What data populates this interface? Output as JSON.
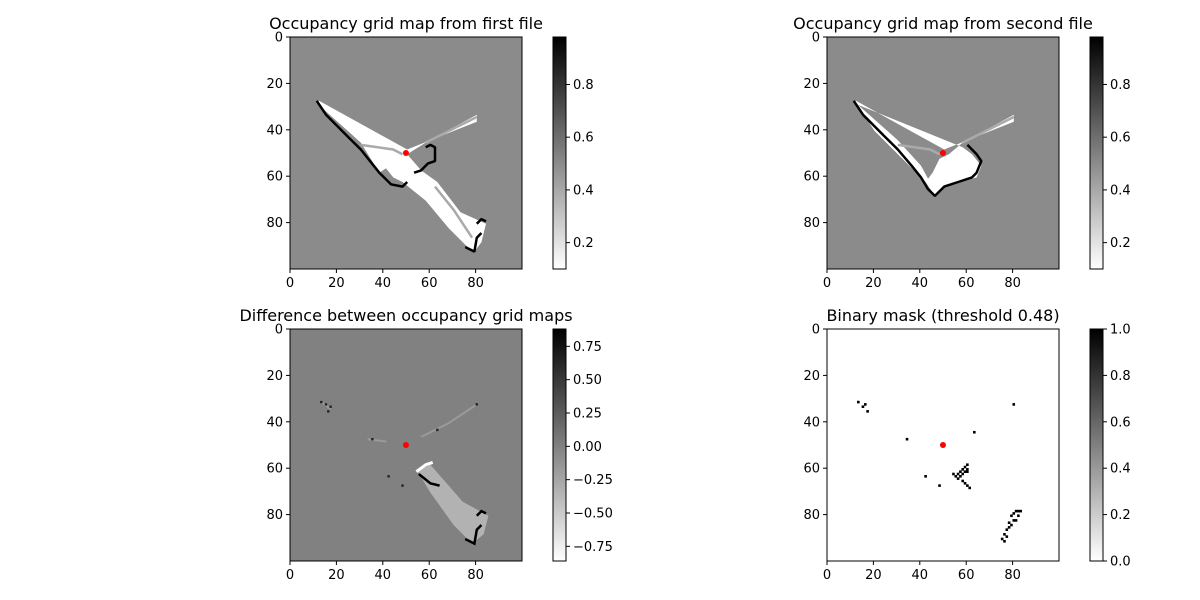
{
  "chart_data": [
    {
      "type": "heatmap",
      "title": "Occupancy grid map from first file",
      "xlim": [
        0,
        99
      ],
      "ylim": [
        99,
        0
      ],
      "xticks": [
        "0",
        "20",
        "40",
        "60",
        "80"
      ],
      "yticks": [
        "0",
        "20",
        "40",
        "60",
        "80"
      ],
      "colormap": "gray_r",
      "background_value": 0.5,
      "colorbar": {
        "range": [
          0.1,
          0.98
        ],
        "ticks": [
          "0.2",
          "0.4",
          "0.6",
          "0.8"
        ]
      },
      "robot_position": {
        "x": 50,
        "y": 50,
        "color": "#ff0000"
      },
      "free_polygons": [
        [
          [
            11,
            28
          ],
          [
            12,
            27
          ],
          [
            50,
            48
          ],
          [
            80,
            36
          ],
          [
            80,
            33
          ],
          [
            58,
            45
          ],
          [
            50,
            50
          ],
          [
            38,
            58
          ],
          [
            30,
            45
          ]
        ],
        [
          [
            36,
            52
          ],
          [
            50,
            50
          ],
          [
            56,
            57
          ],
          [
            63,
            62
          ],
          [
            73,
            75
          ],
          [
            84,
            80
          ],
          [
            82,
            88
          ],
          [
            79,
            92
          ],
          [
            76,
            90
          ],
          [
            68,
            82
          ],
          [
            58,
            70
          ],
          [
            48,
            62
          ],
          [
            44,
            60
          ],
          [
            40,
            55
          ]
        ]
      ],
      "occupied_lines": [
        [
          [
            11,
            27
          ],
          [
            15,
            33
          ],
          [
            24,
            42
          ],
          [
            30,
            48
          ],
          [
            38,
            58
          ],
          [
            43,
            63
          ],
          [
            48,
            64
          ],
          [
            50,
            62
          ]
        ],
        [
          [
            75,
            90
          ],
          [
            79,
            92
          ],
          [
            80,
            86
          ],
          [
            82,
            84
          ]
        ],
        [
          [
            80,
            80
          ],
          [
            82,
            78
          ],
          [
            84,
            79
          ]
        ],
        [
          [
            53,
            58
          ],
          [
            56,
            57
          ],
          [
            59,
            54
          ],
          [
            62,
            53
          ],
          [
            62,
            47
          ],
          [
            60,
            46
          ],
          [
            58,
            47
          ]
        ]
      ],
      "gray_lines": [
        [
          [
            30,
            46
          ],
          [
            44,
            48
          ],
          [
            48,
            50
          ]
        ],
        [
          [
            58,
            45
          ],
          [
            72,
            38
          ],
          [
            80,
            34
          ]
        ],
        [
          [
            62,
            64
          ],
          [
            70,
            74
          ],
          [
            78,
            86
          ]
        ]
      ]
    },
    {
      "type": "heatmap",
      "title": "Occupancy grid map from second file",
      "xlim": [
        0,
        99
      ],
      "ylim": [
        99,
        0
      ],
      "xticks": [
        "0",
        "20",
        "40",
        "60",
        "80"
      ],
      "yticks": [
        "0",
        "20",
        "40",
        "60",
        "80"
      ],
      "colormap": "gray_r",
      "background_value": 0.5,
      "colorbar": {
        "range": [
          0.1,
          0.98
        ],
        "ticks": [
          "0.2",
          "0.4",
          "0.6",
          "0.8"
        ]
      },
      "robot_position": {
        "x": 50,
        "y": 50,
        "color": "#ff0000"
      },
      "free_polygons": [
        [
          [
            11,
            28
          ],
          [
            12,
            27
          ],
          [
            50,
            48
          ],
          [
            80,
            36
          ],
          [
            80,
            33
          ],
          [
            58,
            45
          ],
          [
            52,
            50
          ],
          [
            48,
            52
          ],
          [
            45,
            58
          ],
          [
            42,
            62
          ],
          [
            46,
            68
          ],
          [
            50,
            64
          ],
          [
            64,
            60
          ],
          [
            66,
            55
          ],
          [
            62,
            50
          ],
          [
            58,
            47
          ]
        ],
        [
          [
            12,
            28
          ],
          [
            30,
            44
          ],
          [
            40,
            55
          ],
          [
            46,
            66
          ],
          [
            36,
            56
          ],
          [
            20,
            40
          ]
        ]
      ],
      "occupied_lines": [
        [
          [
            11,
            27
          ],
          [
            15,
            33
          ],
          [
            24,
            42
          ],
          [
            30,
            48
          ],
          [
            36,
            55
          ],
          [
            40,
            60
          ],
          [
            43,
            65
          ],
          [
            46,
            68
          ],
          [
            50,
            64
          ],
          [
            56,
            62
          ],
          [
            62,
            60
          ],
          [
            64,
            58
          ],
          [
            66,
            53
          ],
          [
            64,
            50
          ],
          [
            62,
            48
          ],
          [
            60,
            46
          ]
        ]
      ],
      "gray_lines": [
        [
          [
            30,
            46
          ],
          [
            44,
            48
          ],
          [
            48,
            50
          ]
        ],
        [
          [
            58,
            45
          ],
          [
            72,
            38
          ],
          [
            80,
            34
          ]
        ]
      ]
    },
    {
      "type": "heatmap",
      "title": "Difference between occupancy grid maps",
      "xlim": [
        0,
        99
      ],
      "ylim": [
        99,
        0
      ],
      "xticks": [
        "0",
        "20",
        "40",
        "60",
        "80"
      ],
      "yticks": [
        "0",
        "20",
        "40",
        "60",
        "80"
      ],
      "colormap": "gray_r",
      "background_value": 0.0,
      "colorbar": {
        "range": [
          -0.86,
          0.88
        ],
        "ticks": [
          "0.75",
          "0.50",
          "0.25",
          "0.00",
          "−0.25",
          "−0.50",
          "−0.75"
        ]
      },
      "robot_position": {
        "x": 50,
        "y": 50,
        "color": "#ff0000"
      },
      "diff_polygons": [
        [
          [
            54,
            60
          ],
          [
            60,
            58
          ],
          [
            74,
            74
          ],
          [
            85,
            80
          ],
          [
            83,
            88
          ],
          [
            78,
            92
          ],
          [
            70,
            84
          ],
          [
            60,
            70
          ]
        ]
      ],
      "diff_edges_white": [
        [
          [
            54,
            61
          ],
          [
            58,
            58
          ],
          [
            61,
            57
          ]
        ]
      ],
      "diff_edges_black": [
        [
          [
            55,
            62
          ],
          [
            60,
            66
          ],
          [
            64,
            67
          ]
        ],
        [
          [
            75,
            90
          ],
          [
            79,
            92
          ],
          [
            80,
            86
          ],
          [
            82,
            84
          ]
        ],
        [
          [
            80,
            80
          ],
          [
            82,
            78
          ],
          [
            84,
            79
          ]
        ]
      ],
      "diff_dots": [
        [
          13,
          31
        ],
        [
          15,
          32
        ],
        [
          17,
          33
        ],
        [
          16,
          35
        ],
        [
          35,
          47
        ],
        [
          42,
          63
        ],
        [
          48,
          67
        ],
        [
          63,
          43
        ],
        [
          80,
          32
        ]
      ],
      "diff_gray_lines": [
        [
          [
            33,
            47
          ],
          [
            41,
            48
          ]
        ],
        [
          [
            56,
            46
          ],
          [
            68,
            40
          ],
          [
            80,
            32
          ]
        ],
        [
          [
            13,
            31
          ],
          [
            17,
            34
          ]
        ]
      ]
    },
    {
      "type": "heatmap",
      "title": "Binary mask (threshold 0.48)",
      "xlim": [
        0,
        99
      ],
      "ylim": [
        99,
        0
      ],
      "xticks": [
        "0",
        "20",
        "40",
        "60",
        "80"
      ],
      "yticks": [
        "0",
        "20",
        "40",
        "60",
        "80"
      ],
      "colormap": "gray_r",
      "background_value": 0.0,
      "colorbar": {
        "range": [
          0.0,
          1.0
        ],
        "ticks": [
          "1.0",
          "0.8",
          "0.6",
          "0.4",
          "0.2",
          "0.0"
        ]
      },
      "robot_position": {
        "x": 50,
        "y": 50,
        "color": "#ff0000"
      },
      "mask_points": [
        [
          13,
          31
        ],
        [
          15,
          33
        ],
        [
          16,
          32
        ],
        [
          17,
          35
        ],
        [
          34,
          47
        ],
        [
          42,
          63
        ],
        [
          48,
          67
        ],
        [
          63,
          44
        ],
        [
          80,
          32
        ],
        [
          54,
          62
        ],
        [
          55,
          63
        ],
        [
          56,
          64
        ],
        [
          57,
          61
        ],
        [
          58,
          60
        ],
        [
          59,
          59
        ],
        [
          60,
          58
        ],
        [
          56,
          62
        ],
        [
          57,
          63
        ],
        [
          58,
          65
        ],
        [
          59,
          66
        ],
        [
          60,
          67
        ],
        [
          61,
          68
        ],
        [
          58,
          62
        ],
        [
          59,
          61
        ],
        [
          60,
          60
        ],
        [
          60,
          61
        ],
        [
          79,
          80
        ],
        [
          80,
          79
        ],
        [
          81,
          78
        ],
        [
          82,
          78
        ],
        [
          83,
          78
        ],
        [
          80,
          82
        ],
        [
          81,
          82
        ],
        [
          79,
          84
        ],
        [
          78,
          85
        ],
        [
          77,
          86
        ],
        [
          76,
          88
        ],
        [
          75,
          90
        ],
        [
          76,
          91
        ],
        [
          77,
          89
        ],
        [
          82,
          80
        ],
        [
          78,
          83
        ]
      ]
    }
  ]
}
